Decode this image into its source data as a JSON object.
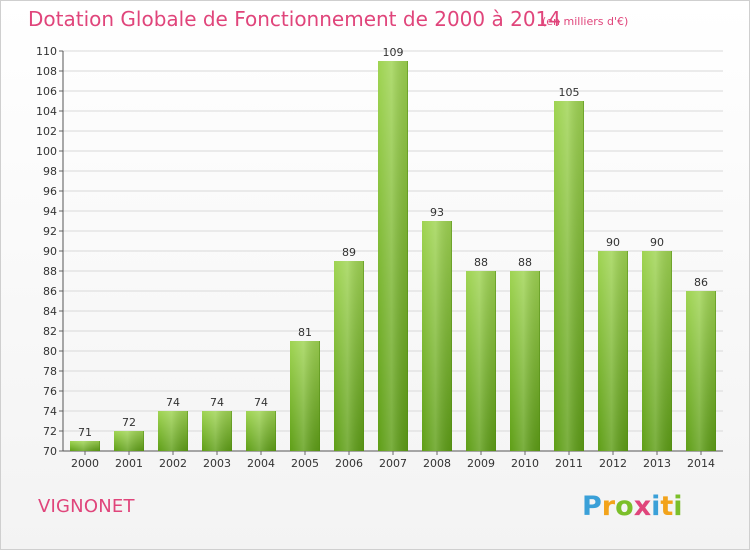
{
  "title": "Dotation Globale de Fonctionnement de 2000 à 2014",
  "subtitle": "(en milliers d'€)",
  "location": "VIGNONET",
  "logo_text": "Proxiti",
  "colors": {
    "title": "#e0457b",
    "bar_top": "#9fd452",
    "bar_bottom": "#5e9e16",
    "grid": "#d9d9d9"
  },
  "chart_data": {
    "type": "bar",
    "title": "Dotation Globale de Fonctionnement de 2000 à 2014",
    "subtitle": "(en milliers d'€)",
    "categories": [
      "2000",
      "2001",
      "2002",
      "2003",
      "2004",
      "2005",
      "2006",
      "2007",
      "2008",
      "2009",
      "2010",
      "2011",
      "2012",
      "2013",
      "2014"
    ],
    "values": [
      71,
      72,
      74,
      74,
      74,
      81,
      89,
      109,
      93,
      88,
      88,
      105,
      90,
      90,
      86
    ],
    "ylim": [
      70,
      110
    ],
    "ytick_step": 2,
    "grid": true,
    "legend": "none"
  }
}
